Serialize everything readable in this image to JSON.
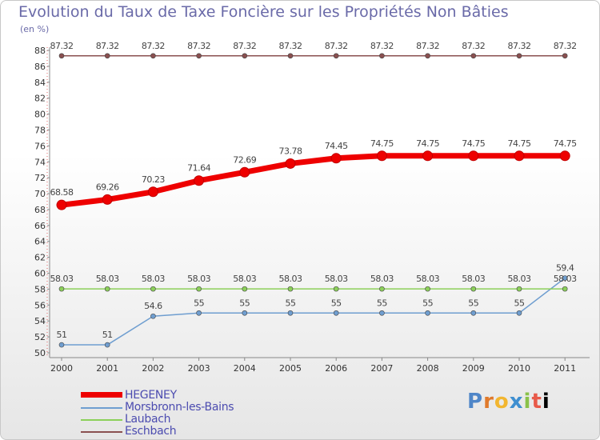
{
  "header": {
    "title": "Evolution du Taux de Taxe Foncière sur les Propriétés Non Bâties",
    "unit": "(en %)"
  },
  "logo": {
    "text": "Proxiti"
  },
  "chart_data": {
    "type": "line",
    "title": "Evolution du Taux de Taxe Foncière sur les Propriétés Non Bâties",
    "ylabel": "(en %)",
    "xlabel": "",
    "x": [
      "2000",
      "2001",
      "2002",
      "2003",
      "2004",
      "2005",
      "2006",
      "2007",
      "2008",
      "2009",
      "2010",
      "2011"
    ],
    "ylim": [
      50,
      88
    ],
    "ytick_step": 2,
    "grid": false,
    "legend_position": "bottom-left",
    "series": [
      {
        "name": "HEGENEY",
        "color": "#ee0000",
        "emphasis": true,
        "labels": [
          "68.58",
          "69.26",
          "70.23",
          "71.64",
          "72.69",
          "73.78",
          "74.45",
          "74.75",
          "74.75",
          "74.75",
          "74.75",
          "74.75"
        ],
        "values": [
          68.58,
          69.26,
          70.23,
          71.64,
          72.69,
          73.78,
          74.45,
          74.75,
          74.75,
          74.75,
          74.75,
          74.75
        ]
      },
      {
        "name": "Morsbronn-les-Bains",
        "color": "#6f9ed0",
        "emphasis": false,
        "labels": [
          "51",
          "51",
          "54.6",
          "55",
          "55",
          "55",
          "55",
          "55",
          "55",
          "55",
          "55",
          "59.4"
        ],
        "values": [
          51,
          51,
          54.6,
          55,
          55,
          55,
          55,
          55,
          55,
          55,
          55,
          59.4
        ]
      },
      {
        "name": "Laubach",
        "color": "#8cd05a",
        "emphasis": false,
        "labels": [
          "58.03",
          "58.03",
          "58.03",
          "58.03",
          "58.03",
          "58.03",
          "58.03",
          "58.03",
          "58.03",
          "58.03",
          "58.03",
          "58.03"
        ],
        "values": [
          58.03,
          58.03,
          58.03,
          58.03,
          58.03,
          58.03,
          58.03,
          58.03,
          58.03,
          58.03,
          58.03,
          58.03
        ]
      },
      {
        "name": "Eschbach",
        "color": "#8a5050",
        "emphasis": false,
        "labels": [
          "87.32",
          "87.32",
          "87.32",
          "87.32",
          "87.32",
          "87.32",
          "87.32",
          "87.32",
          "87.32",
          "87.32",
          "87.32",
          "87.32"
        ],
        "values": [
          87.32,
          87.32,
          87.32,
          87.32,
          87.32,
          87.32,
          87.32,
          87.32,
          87.32,
          87.32,
          87.32,
          87.32
        ]
      }
    ]
  }
}
